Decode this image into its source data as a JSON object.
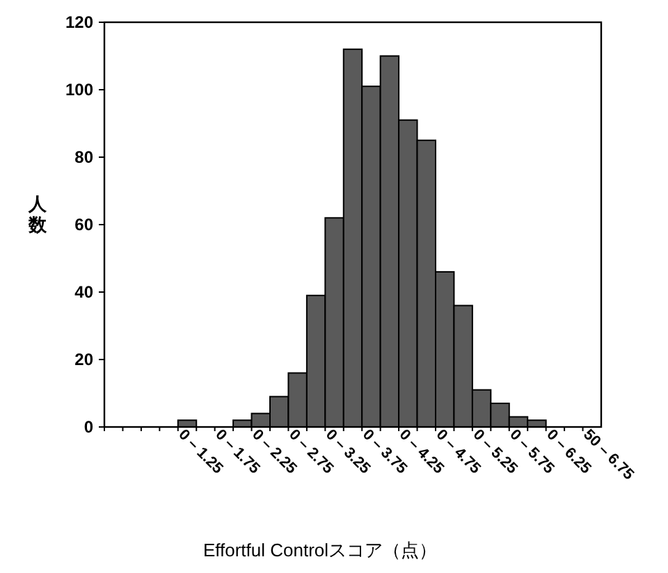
{
  "chart_data": {
    "type": "bar",
    "xlabel": "Effortful Controlスコア（点）",
    "ylabel": "人数",
    "categories": [
      null,
      null,
      null,
      null,
      "0 – 1.25",
      null,
      "0 – 1.75",
      null,
      "0 – 2.25",
      null,
      "0 – 2.75",
      null,
      "0 – 3.25",
      null,
      "0 – 3.75",
      null,
      "0 – 4.25",
      null,
      "0 – 4.75",
      null,
      "0 – 5.25",
      null,
      "0 – 5.75",
      null,
      "0 – 6.25",
      null,
      "50 – 6.75"
    ],
    "values": [
      0,
      0,
      0,
      0,
      2,
      0,
      0,
      2,
      4,
      9,
      16,
      39,
      62,
      112,
      101,
      110,
      91,
      85,
      46,
      36,
      11,
      7,
      3,
      2,
      0,
      0,
      0
    ],
    "color": "#5a5a5a",
    "ylim": [
      0,
      120
    ],
    "yticks": [
      0,
      20,
      40,
      60,
      80,
      100,
      120
    ]
  }
}
